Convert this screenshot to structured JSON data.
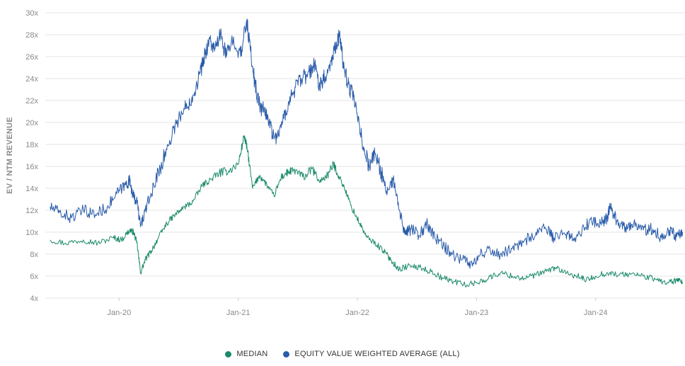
{
  "chart_data": {
    "type": "line",
    "title": "",
    "xlabel": "",
    "ylabel": "EV / NTM REVENUE",
    "ylim": [
      4,
      30
    ],
    "y_ticks": [
      "30x",
      "28x",
      "26x",
      "24x",
      "22x",
      "20x",
      "18x",
      "16x",
      "14x",
      "12x",
      "10x",
      "8x",
      "6x",
      "4x"
    ],
    "y_tick_values": [
      30,
      28,
      26,
      24,
      22,
      20,
      18,
      16,
      14,
      12,
      10,
      8,
      6,
      4
    ],
    "x_ticks": [
      "Jan-20",
      "Jan-21",
      "Jan-22",
      "Jan-23",
      "Jan-24"
    ],
    "x_tick_values": [
      2020.0,
      2021.0,
      2022.0,
      2023.0,
      2024.0
    ],
    "xlim": [
      2019.38,
      2024.75
    ],
    "grid": "horizontal",
    "legend_position": "bottom-center",
    "series": [
      {
        "name": "MEDIAN",
        "color": "#1b8a6b",
        "points": [
          [
            2019.42,
            9.3
          ],
          [
            2019.55,
            9.0
          ],
          [
            2019.7,
            9.3
          ],
          [
            2019.82,
            9.0
          ],
          [
            2019.95,
            9.5
          ],
          [
            2020.02,
            9.3
          ],
          [
            2020.09,
            10.2
          ],
          [
            2020.12,
            10.0
          ],
          [
            2020.15,
            9.0
          ],
          [
            2020.18,
            6.3
          ],
          [
            2020.22,
            7.5
          ],
          [
            2020.27,
            8.3
          ],
          [
            2020.33,
            9.5
          ],
          [
            2020.4,
            10.8
          ],
          [
            2020.47,
            11.6
          ],
          [
            2020.55,
            12.3
          ],
          [
            2020.62,
            12.8
          ],
          [
            2020.7,
            14.3
          ],
          [
            2020.77,
            14.8
          ],
          [
            2020.84,
            15.4
          ],
          [
            2020.92,
            15.6
          ],
          [
            2021.0,
            16.2
          ],
          [
            2021.05,
            18.8
          ],
          [
            2021.08,
            17.3
          ],
          [
            2021.12,
            14.0
          ],
          [
            2021.18,
            15.2
          ],
          [
            2021.24,
            14.3
          ],
          [
            2021.3,
            13.3
          ],
          [
            2021.36,
            15.0
          ],
          [
            2021.42,
            15.5
          ],
          [
            2021.48,
            15.6
          ],
          [
            2021.55,
            15.0
          ],
          [
            2021.62,
            15.8
          ],
          [
            2021.68,
            14.6
          ],
          [
            2021.75,
            15.2
          ],
          [
            2021.8,
            16.2
          ],
          [
            2021.85,
            15.0
          ],
          [
            2021.9,
            13.8
          ],
          [
            2021.95,
            12.3
          ],
          [
            2022.02,
            10.8
          ],
          [
            2022.08,
            9.5
          ],
          [
            2022.15,
            9.0
          ],
          [
            2022.22,
            8.3
          ],
          [
            2022.28,
            7.5
          ],
          [
            2022.35,
            6.6
          ],
          [
            2022.42,
            6.9
          ],
          [
            2022.52,
            6.8
          ],
          [
            2022.62,
            6.4
          ],
          [
            2022.72,
            5.8
          ],
          [
            2022.82,
            5.5
          ],
          [
            2022.92,
            5.2
          ],
          [
            2023.0,
            5.4
          ],
          [
            2023.1,
            5.8
          ],
          [
            2023.2,
            6.3
          ],
          [
            2023.3,
            6.0
          ],
          [
            2023.4,
            5.8
          ],
          [
            2023.5,
            6.1
          ],
          [
            2023.6,
            6.5
          ],
          [
            2023.67,
            6.8
          ],
          [
            2023.75,
            6.2
          ],
          [
            2023.85,
            6.0
          ],
          [
            2023.92,
            5.6
          ],
          [
            2024.0,
            6.0
          ],
          [
            2024.1,
            6.3
          ],
          [
            2024.2,
            6.1
          ],
          [
            2024.3,
            6.2
          ],
          [
            2024.4,
            6.0
          ],
          [
            2024.5,
            5.7
          ],
          [
            2024.6,
            5.4
          ],
          [
            2024.68,
            5.6
          ],
          [
            2024.73,
            5.4
          ]
        ]
      },
      {
        "name": "EQUITY VALUE WEIGHTED AVERAGE (ALL)",
        "color": "#2a5caa",
        "points": [
          [
            2019.42,
            12.3
          ],
          [
            2019.5,
            11.8
          ],
          [
            2019.6,
            11.3
          ],
          [
            2019.7,
            12.0
          ],
          [
            2019.8,
            11.6
          ],
          [
            2019.9,
            12.3
          ],
          [
            2019.98,
            13.5
          ],
          [
            2020.05,
            14.3
          ],
          [
            2020.09,
            14.7
          ],
          [
            2020.12,
            13.2
          ],
          [
            2020.15,
            12.8
          ],
          [
            2020.18,
            10.5
          ],
          [
            2020.22,
            12.0
          ],
          [
            2020.27,
            13.5
          ],
          [
            2020.33,
            15.5
          ],
          [
            2020.4,
            17.5
          ],
          [
            2020.47,
            19.8
          ],
          [
            2020.55,
            21.2
          ],
          [
            2020.62,
            22.5
          ],
          [
            2020.68,
            24.5
          ],
          [
            2020.72,
            26.2
          ],
          [
            2020.76,
            27.6
          ],
          [
            2020.8,
            26.5
          ],
          [
            2020.85,
            28.0
          ],
          [
            2020.9,
            26.0
          ],
          [
            2020.96,
            27.8
          ],
          [
            2021.02,
            26.0
          ],
          [
            2021.07,
            29.3
          ],
          [
            2021.1,
            26.8
          ],
          [
            2021.14,
            23.5
          ],
          [
            2021.18,
            21.5
          ],
          [
            2021.22,
            21.0
          ],
          [
            2021.26,
            20.2
          ],
          [
            2021.3,
            18.5
          ],
          [
            2021.36,
            19.5
          ],
          [
            2021.42,
            21.8
          ],
          [
            2021.48,
            23.2
          ],
          [
            2021.54,
            24.0
          ],
          [
            2021.6,
            24.5
          ],
          [
            2021.64,
            25.3
          ],
          [
            2021.68,
            23.5
          ],
          [
            2021.73,
            24.2
          ],
          [
            2021.78,
            25.6
          ],
          [
            2021.82,
            27.2
          ],
          [
            2021.85,
            27.9
          ],
          [
            2021.88,
            25.5
          ],
          [
            2021.92,
            23.5
          ],
          [
            2021.96,
            22.5
          ],
          [
            2022.0,
            20.5
          ],
          [
            2022.05,
            17.8
          ],
          [
            2022.1,
            16.0
          ],
          [
            2022.15,
            17.2
          ],
          [
            2022.2,
            15.5
          ],
          [
            2022.25,
            13.5
          ],
          [
            2022.3,
            14.8
          ],
          [
            2022.35,
            12.0
          ],
          [
            2022.4,
            9.8
          ],
          [
            2022.45,
            10.3
          ],
          [
            2022.52,
            9.7
          ],
          [
            2022.58,
            10.8
          ],
          [
            2022.65,
            9.5
          ],
          [
            2022.72,
            8.8
          ],
          [
            2022.8,
            8.0
          ],
          [
            2022.88,
            7.5
          ],
          [
            2022.95,
            7.2
          ],
          [
            2023.02,
            7.8
          ],
          [
            2023.1,
            8.5
          ],
          [
            2023.2,
            8.0
          ],
          [
            2023.3,
            8.5
          ],
          [
            2023.4,
            9.2
          ],
          [
            2023.5,
            10.0
          ],
          [
            2023.58,
            10.3
          ],
          [
            2023.65,
            9.5
          ],
          [
            2023.75,
            9.8
          ],
          [
            2023.82,
            9.2
          ],
          [
            2023.9,
            10.5
          ],
          [
            2023.98,
            11.0
          ],
          [
            2024.04,
            10.8
          ],
          [
            2024.1,
            11.3
          ],
          [
            2024.12,
            12.3
          ],
          [
            2024.18,
            11.0
          ],
          [
            2024.25,
            10.5
          ],
          [
            2024.32,
            10.8
          ],
          [
            2024.4,
            10.2
          ],
          [
            2024.48,
            10.3
          ],
          [
            2024.55,
            9.5
          ],
          [
            2024.62,
            10.2
          ],
          [
            2024.68,
            9.6
          ],
          [
            2024.73,
            10.0
          ]
        ]
      }
    ]
  },
  "legend": {
    "items": [
      {
        "label": "MEDIAN",
        "color": "#1b8a6b"
      },
      {
        "label": "EQUITY VALUE WEIGHTED AVERAGE (ALL)",
        "color": "#2a5caa"
      }
    ]
  }
}
